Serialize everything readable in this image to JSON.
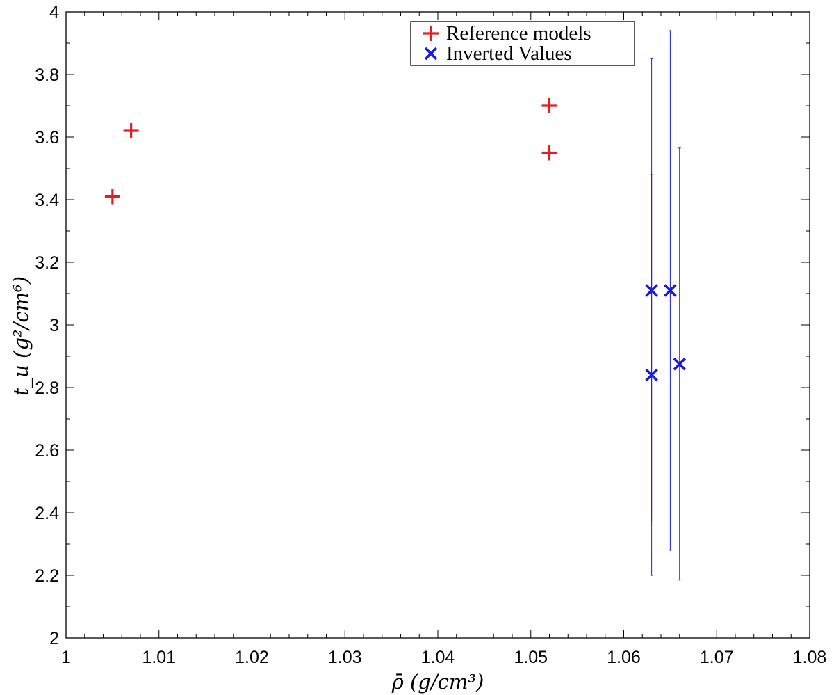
{
  "chart_data": {
    "type": "scatter",
    "xlabel": "ρ̄ (g/cm³)",
    "ylabel": "t_u (g²/cm⁶)",
    "xlim": [
      1.0,
      1.08
    ],
    "ylim": [
      2.0,
      4.0
    ],
    "xticks": [
      1,
      1.01,
      1.02,
      1.03,
      1.04,
      1.05,
      1.06,
      1.07,
      1.08
    ],
    "xtick_labels": [
      "1",
      "1.01",
      "1.02",
      "1.03",
      "1.04",
      "1.05",
      "1.06",
      "1.07",
      "1.08"
    ],
    "yticks": [
      2,
      2.2,
      2.4,
      2.6,
      2.8,
      3,
      3.2,
      3.4,
      3.6,
      3.8,
      4
    ],
    "ytick_labels": [
      "2",
      "2.2",
      "2.4",
      "2.6",
      "2.8",
      "3",
      "3.2",
      "3.4",
      "3.6",
      "3.8",
      "4"
    ],
    "grid": false,
    "legend_position": "top-center",
    "series": [
      {
        "name": "Reference models",
        "marker": "plus",
        "color": "#e02020",
        "points": [
          {
            "x": 1.005,
            "y": 3.41
          },
          {
            "x": 1.007,
            "y": 3.62
          },
          {
            "x": 1.052,
            "y": 3.7
          },
          {
            "x": 1.052,
            "y": 3.55
          }
        ]
      },
      {
        "name": "Inverted Values",
        "marker": "x",
        "color": "#1a1adb",
        "points": [
          {
            "x": 1.063,
            "y": 3.11,
            "ylow": 2.37,
            "yhigh": 3.85
          },
          {
            "x": 1.065,
            "y": 3.11,
            "ylow": 2.28,
            "yhigh": 3.94
          },
          {
            "x": 1.063,
            "y": 2.84,
            "ylow": 2.2,
            "yhigh": 3.48
          },
          {
            "x": 1.066,
            "y": 2.875,
            "ylow": 2.185,
            "yhigh": 3.565
          }
        ]
      }
    ]
  }
}
